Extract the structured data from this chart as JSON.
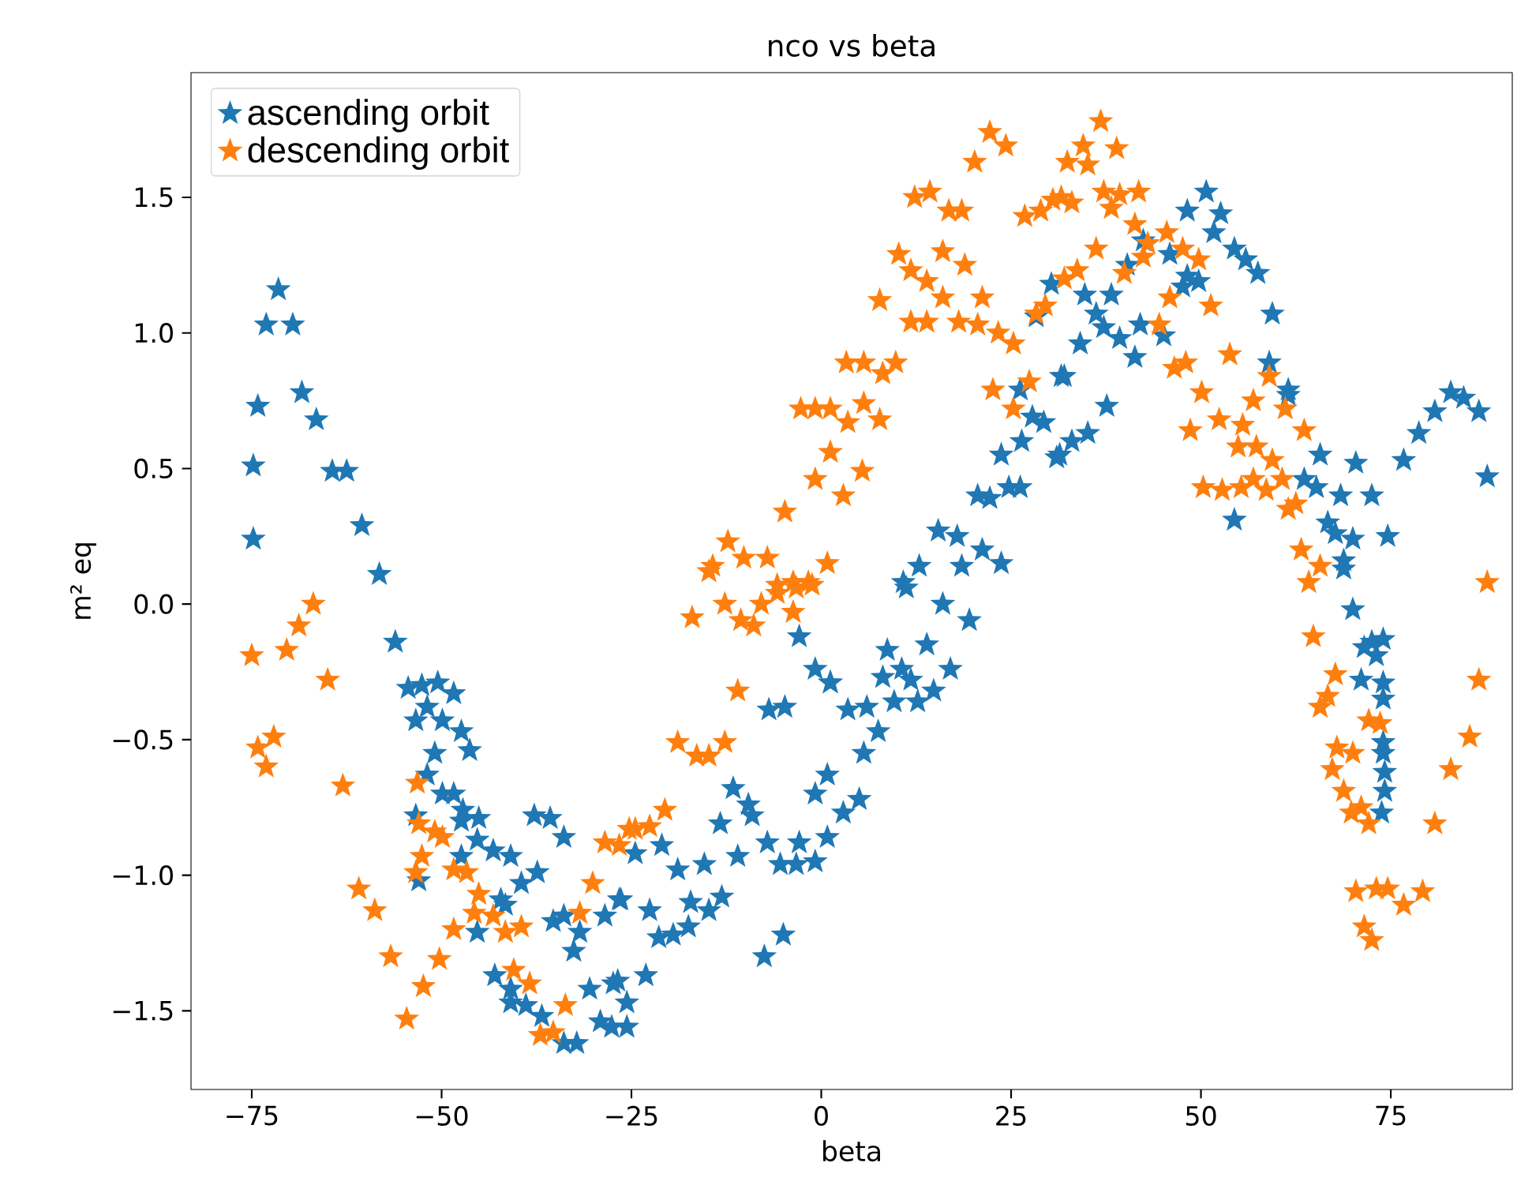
{
  "chart_data": {
    "type": "scatter",
    "title": "nco vs beta",
    "xlabel": "beta",
    "ylabel": "m² eq",
    "xlim": [
      -83,
      91
    ],
    "ylim": [
      -1.79,
      1.96
    ],
    "xticks": [
      {
        "value": -75,
        "label": "−75"
      },
      {
        "value": -50,
        "label": "−50"
      },
      {
        "value": -25,
        "label": "−25"
      },
      0,
      25,
      50,
      75
    ],
    "yticks": [
      {
        "value": -1.5,
        "label": "−1.5"
      },
      {
        "value": -1.0,
        "label": "−1.0"
      },
      {
        "value": -0.5,
        "label": "−0.5"
      },
      {
        "value": 0,
        "label": "0.0"
      },
      0.5,
      {
        "value": 1.0,
        "label": "1.0"
      },
      1.5
    ],
    "grid": false,
    "legend": "top left",
    "marker": "star",
    "series": [
      {
        "name": "ascending orbit",
        "color": "#1f77b4",
        "x": [
          -71.5,
          -73.1,
          -69.6,
          -74.2,
          -68.4,
          -66.5,
          -74.8,
          -64.4,
          -62.5,
          -74.8,
          -60.5,
          -58.2,
          -56.1,
          -54.4,
          -52.6,
          -50.5,
          -48.4,
          -51.9,
          -53.4,
          -49.9,
          -47.4,
          -46.3,
          -50.9,
          -51.9,
          -49.9,
          -48.4,
          -53.4,
          -47.2,
          -45.1,
          -47.4,
          -45.3,
          -43.2,
          -40.9,
          -37.8,
          -35.7,
          -33.9,
          -47.4,
          -53,
          -37.4,
          -39.5,
          -42.2,
          -41.6,
          -45.3,
          -35.3,
          -33.9,
          -31.8,
          -32.6,
          -28.5,
          -26.4,
          -43,
          -40.9,
          -40.9,
          -38.9,
          -36.8,
          -33.9,
          -32.2,
          -30.5,
          -27.4,
          -29.1,
          -27.6,
          -25.6,
          -26.6,
          -22.6,
          -17.2,
          -14.8,
          -13.1,
          -21.4,
          -19.5,
          -17.5,
          -5,
          -7.5,
          -23.1,
          -26.8,
          -25.6,
          -21,
          -24.5,
          -18.9,
          -15.4,
          -11,
          -5.4,
          -3.3,
          -0.8,
          -7.1,
          -2.9,
          0.8,
          -11.6,
          -9.6,
          -9.1,
          -13.3,
          0.8,
          -0.8,
          5,
          2.9,
          3.5,
          6,
          9.6,
          12.7,
          -6.9,
          -4.8,
          7.5,
          5.6,
          1.2,
          -2.9,
          8.7,
          13.9,
          -0.8,
          1.2,
          8.1,
          10.6,
          11.8,
          17,
          14.8,
          11.2,
          16,
          19.5,
          10.8,
          12.9,
          15.4,
          17.9,
          18.5,
          21.2,
          23.7,
          20.6,
          22.2,
          24.7,
          26.2,
          23.7,
          26.4,
          31,
          26.2,
          27.8,
          29.3,
          31.6,
          28.3,
          30.3,
          31.4,
          33,
          35.1,
          37.6,
          32,
          34.1,
          36.2,
          37.2,
          39.3,
          41.3,
          42,
          45.1,
          34.7,
          38.2,
          40.3,
          42.4,
          45.9,
          47.6,
          48.2,
          49.7,
          48.2,
          50.7,
          52.6,
          51.7,
          54.4,
          55.9,
          57.5,
          59.4,
          59,
          61.5,
          61.5,
          65.7,
          63.6,
          65.2,
          68.4,
          70.4,
          72.5,
          54.4,
          66.7,
          67.7,
          70,
          74.6,
          68.8,
          68.8,
          76.7,
          78.7,
          80.8,
          82.9,
          84.6,
          86.6,
          87.7,
          70,
          72.5,
          71.5,
          74,
          73.1,
          71.1,
          74,
          74,
          74,
          74,
          74.2,
          74.2,
          73.8
        ],
        "values": [
          1.16,
          1.03,
          1.03,
          0.73,
          0.78,
          0.68,
          0.51,
          0.49,
          0.49,
          0.24,
          0.29,
          0.11,
          -0.14,
          -0.31,
          -0.3,
          -0.29,
          -0.33,
          -0.38,
          -0.43,
          -0.43,
          -0.47,
          -0.54,
          -0.55,
          -0.63,
          -0.7,
          -0.7,
          -0.78,
          -0.76,
          -0.79,
          -0.8,
          -0.87,
          -0.91,
          -0.93,
          -0.78,
          -0.79,
          -0.86,
          -0.93,
          -1.02,
          -0.99,
          -1.03,
          -1.09,
          -1.11,
          -1.21,
          -1.17,
          -1.15,
          -1.21,
          -1.28,
          -1.15,
          -1.09,
          -1.37,
          -1.42,
          -1.47,
          -1.48,
          -1.52,
          -1.62,
          -1.62,
          -1.42,
          -1.4,
          -1.54,
          -1.56,
          -1.56,
          -1.09,
          -1.13,
          -1.1,
          -1.13,
          -1.08,
          -1.23,
          -1.22,
          -1.19,
          -1.22,
          -1.3,
          -1.37,
          -1.39,
          -1.47,
          -0.89,
          -0.92,
          -0.98,
          -0.96,
          -0.93,
          -0.96,
          -0.96,
          -0.95,
          -0.88,
          -0.88,
          -0.86,
          -0.68,
          -0.74,
          -0.78,
          -0.81,
          -0.63,
          -0.7,
          -0.72,
          -0.77,
          -0.39,
          -0.38,
          -0.36,
          -0.36,
          -0.39,
          -0.38,
          -0.47,
          -0.55,
          -0.29,
          -0.12,
          -0.17,
          -0.15,
          -0.24,
          -0.29,
          -0.27,
          -0.24,
          -0.28,
          -0.24,
          -0.32,
          0.06,
          0,
          -0.06,
          0.08,
          0.14,
          0.27,
          0.25,
          0.14,
          0.2,
          0.15,
          0.4,
          0.39,
          0.43,
          0.43,
          0.55,
          0.6,
          0.54,
          0.79,
          0.69,
          0.67,
          0.84,
          1.06,
          1.18,
          0.55,
          0.6,
          0.63,
          0.73,
          0.84,
          0.96,
          1.07,
          1.02,
          0.98,
          0.91,
          1.03,
          0.99,
          1.14,
          1.14,
          1.25,
          1.34,
          1.29,
          1.17,
          1.45,
          1.19,
          1.21,
          1.52,
          1.44,
          1.37,
          1.31,
          1.27,
          1.22,
          1.07,
          0.89,
          0.79,
          0.77,
          0.55,
          0.46,
          0.43,
          0.4,
          0.52,
          0.4,
          0.31,
          0.3,
          0.26,
          0.24,
          0.25,
          0.16,
          0.13,
          0.53,
          0.63,
          0.71,
          0.78,
          0.76,
          0.71,
          0.47,
          -0.02,
          -0.14,
          -0.16,
          -0.13,
          -0.19,
          -0.28,
          -0.29,
          -0.35,
          -0.51,
          -0.55,
          -0.62,
          -0.69,
          -0.77
        ]
      },
      {
        "name": "descending orbit",
        "color": "#ff7f0e",
        "x": [
          -66.9,
          -68.8,
          -70.4,
          -75,
          -65,
          -72.1,
          -74.2,
          -73.1,
          -63,
          -53.2,
          -53,
          -50.9,
          -49.9,
          -52.6,
          -53.4,
          -48.4,
          -46.7,
          -45.1,
          -45.7,
          -43.2,
          -48.4,
          -41.6,
          -39.5,
          -60.9,
          -58.8,
          -56.7,
          -50.3,
          -52.4,
          -54.6,
          -40.5,
          -38.4,
          -33.7,
          -37,
          -35.3,
          -30.1,
          -31.8,
          -28.5,
          -26.6,
          -25.3,
          -24.5,
          -22.6,
          -20.6,
          -18.9,
          -16.4,
          -14.8,
          -12.7,
          -11,
          -17,
          -12.7,
          -10.6,
          -8.9,
          -7.9,
          -5.8,
          -3.3,
          -1.2,
          -3.7,
          -14.8,
          -14.3,
          -12.3,
          -10.2,
          -7.1,
          -5.8,
          -3.7,
          -1.7,
          0.8,
          -4.8,
          -0.8,
          2.9,
          1.2,
          5.4,
          -2.7,
          -0.8,
          1.2,
          3.5,
          5.6,
          7.7,
          3.3,
          5.6,
          8.1,
          9.8,
          7.7,
          11.8,
          13.9,
          18.1,
          20.6,
          23.3,
          25.3,
          22.6,
          25.3,
          27.4,
          28.3,
          29.5,
          32,
          10.2,
          11.8,
          13.9,
          16,
          18.9,
          16,
          21.2,
          12.3,
          14.3,
          16.8,
          18.5,
          26.8,
          28.9,
          30.5,
          32.4,
          20.2,
          22.2,
          24.3,
          36.8,
          34.5,
          38.9,
          35.1,
          31.6,
          33,
          37.2,
          39.3,
          41.8,
          38.2,
          41.3,
          36.2,
          43,
          45.5,
          42.4,
          47.6,
          49.7,
          33.7,
          39.9,
          45.9,
          51.3,
          44.5,
          53.8,
          48,
          46.5,
          59,
          50.1,
          56.9,
          61.1,
          52.4,
          48.6,
          55.5,
          63.6,
          54.9,
          57.3,
          59.4,
          50.3,
          52.8,
          55.3,
          56.9,
          58.6,
          60.7,
          61.5,
          62.5,
          63.2,
          65.7,
          64.2,
          87.7,
          64.8,
          67.7,
          66.7,
          65.7,
          86.6,
          72.1,
          73.6,
          67.9,
          70,
          67.3,
          85.4,
          82.9,
          68.8,
          69.8,
          71.1,
          72.1,
          80.8,
          70.4,
          73.1,
          74.6,
          79.2,
          76.7,
          71.5,
          72.5
        ],
        "values": [
          0,
          -0.08,
          -0.17,
          -0.19,
          -0.28,
          -0.49,
          -0.53,
          -0.6,
          -0.67,
          -0.66,
          -0.81,
          -0.84,
          -0.86,
          -0.93,
          -0.99,
          -0.98,
          -0.99,
          -1.07,
          -1.14,
          -1.15,
          -1.2,
          -1.21,
          -1.19,
          -1.05,
          -1.13,
          -1.3,
          -1.31,
          -1.41,
          -1.53,
          -1.35,
          -1.4,
          -1.48,
          -1.59,
          -1.58,
          -1.03,
          -1.14,
          -0.88,
          -0.89,
          -0.83,
          -0.83,
          -0.82,
          -0.76,
          -0.51,
          -0.56,
          -0.56,
          -0.51,
          -0.32,
          -0.05,
          0,
          -0.06,
          -0.08,
          0,
          0.04,
          0.06,
          0.07,
          -0.03,
          0.12,
          0.14,
          0.23,
          0.17,
          0.17,
          0.07,
          0.08,
          0.08,
          0.15,
          0.34,
          0.46,
          0.4,
          0.56,
          0.49,
          0.72,
          0.72,
          0.72,
          0.67,
          0.74,
          0.68,
          0.89,
          0.89,
          0.85,
          0.89,
          1.12,
          1.04,
          1.04,
          1.04,
          1.03,
          1,
          0.96,
          0.79,
          0.72,
          0.82,
          1.07,
          1.1,
          1.2,
          1.29,
          1.23,
          1.19,
          1.3,
          1.25,
          1.13,
          1.13,
          1.5,
          1.52,
          1.45,
          1.45,
          1.43,
          1.45,
          1.49,
          1.63,
          1.63,
          1.74,
          1.69,
          1.78,
          1.69,
          1.68,
          1.62,
          1.5,
          1.48,
          1.52,
          1.51,
          1.52,
          1.46,
          1.4,
          1.31,
          1.33,
          1.37,
          1.28,
          1.31,
          1.27,
          1.23,
          1.22,
          1.13,
          1.1,
          1.03,
          0.92,
          0.89,
          0.87,
          0.84,
          0.78,
          0.75,
          0.72,
          0.68,
          0.64,
          0.66,
          0.64,
          0.58,
          0.58,
          0.53,
          0.43,
          0.42,
          0.43,
          0.46,
          0.42,
          0.46,
          0.35,
          0.37,
          0.2,
          0.14,
          0.08,
          0.08,
          -0.12,
          -0.26,
          -0.34,
          -0.38,
          -0.28,
          -0.43,
          -0.44,
          -0.53,
          -0.55,
          -0.61,
          -0.49,
          -0.61,
          -0.69,
          -0.77,
          -0.75,
          -0.81,
          -0.81,
          -1.06,
          -1.05,
          -1.05,
          -1.06,
          -1.11,
          -1.19,
          -1.24
        ]
      }
    ]
  }
}
